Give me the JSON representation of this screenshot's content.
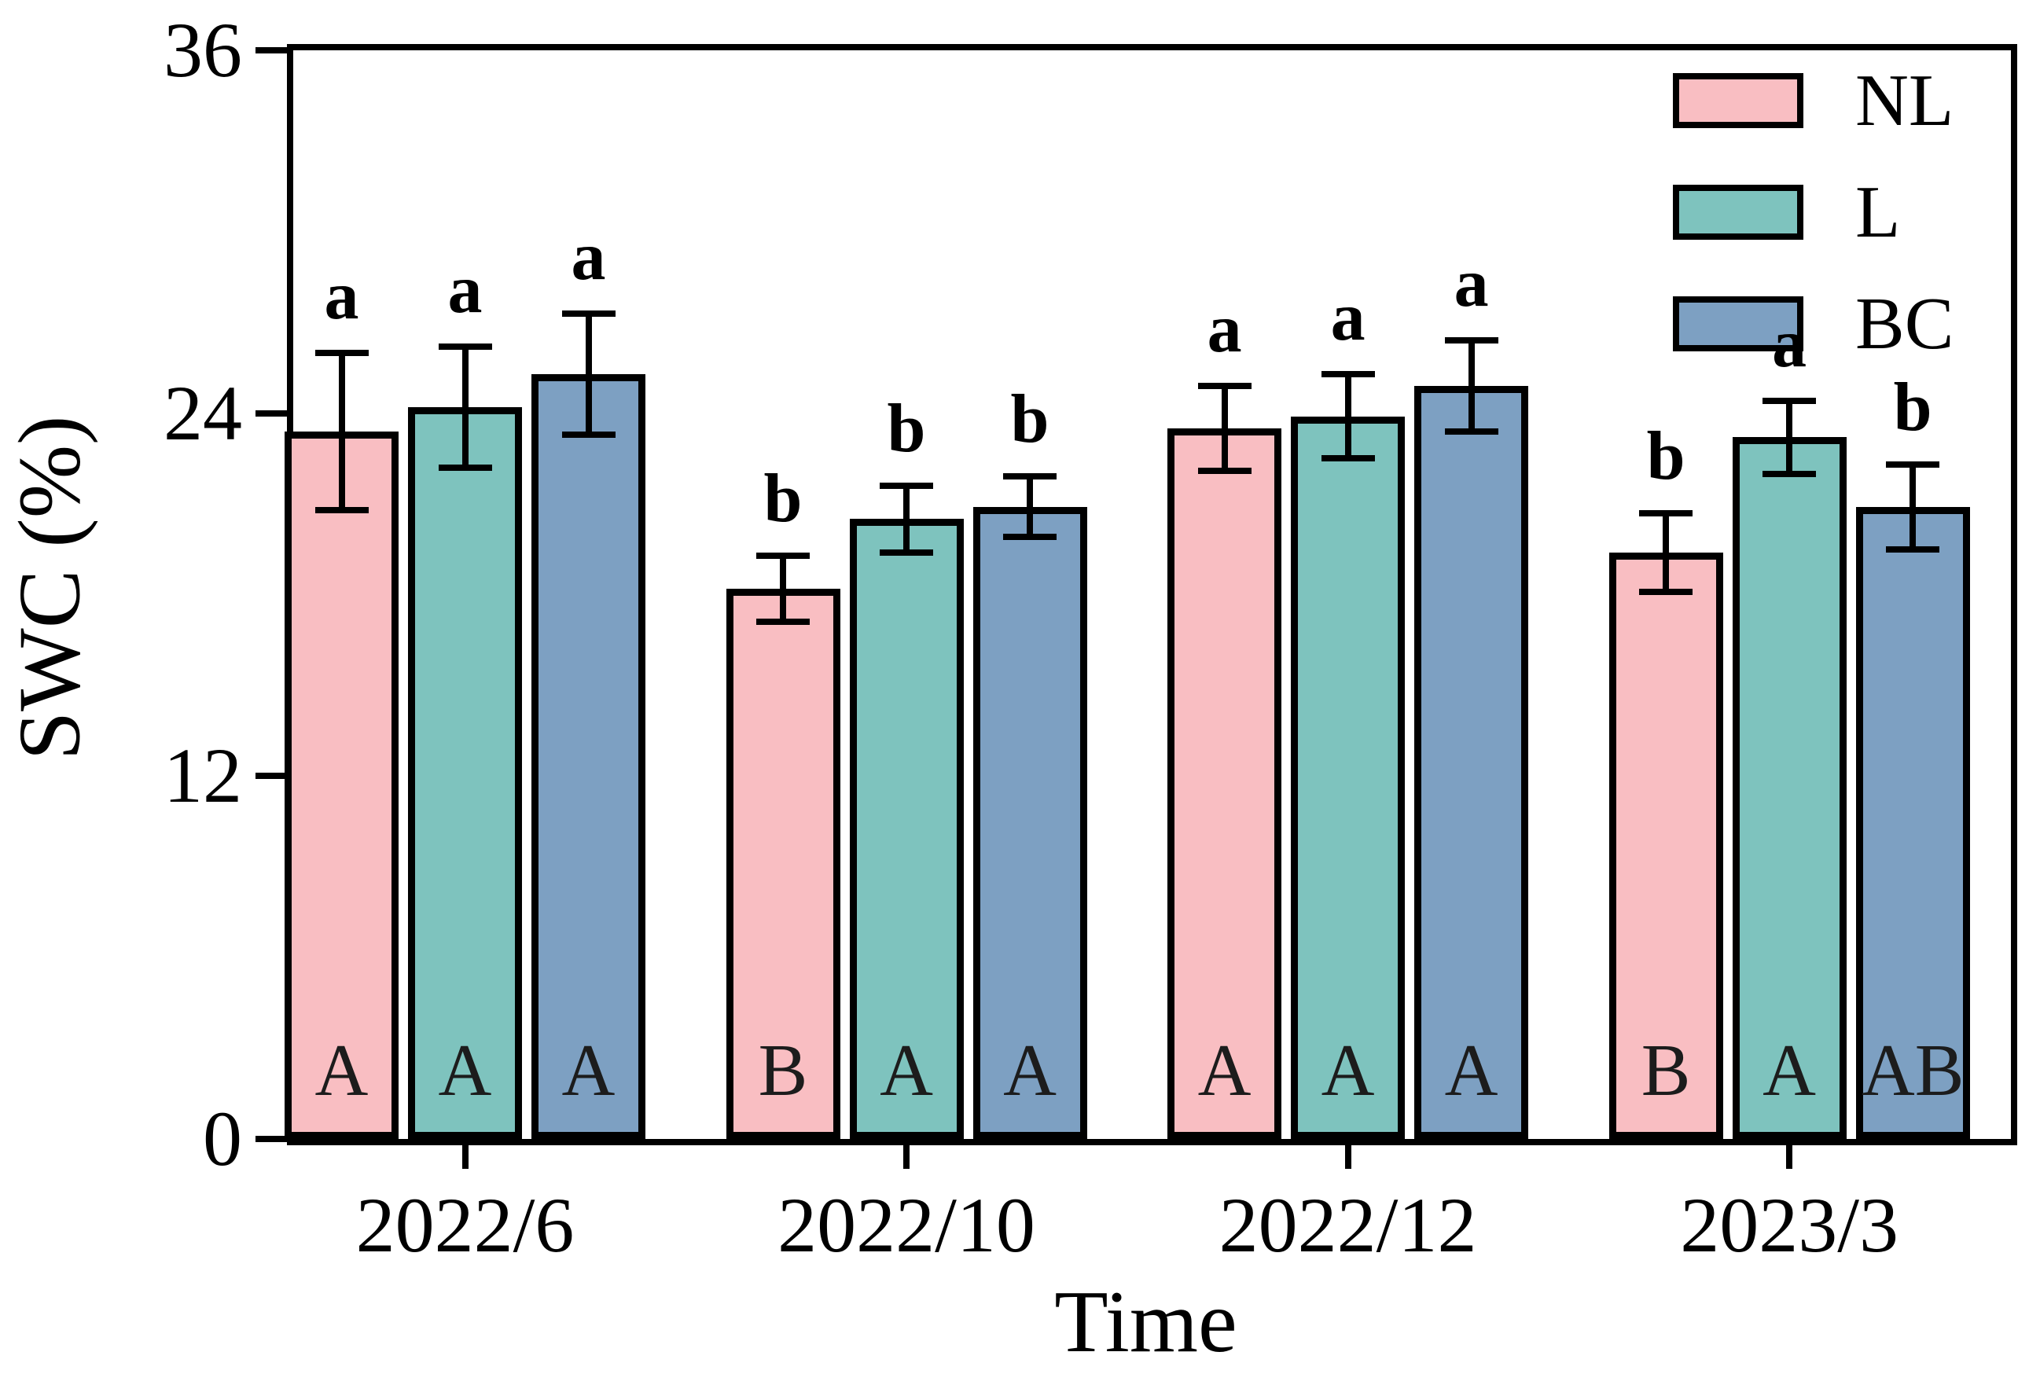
{
  "chart_data": {
    "type": "bar",
    "title": "",
    "xlabel": "Time",
    "ylabel": "SWC (%)",
    "ylim": [
      0,
      36
    ],
    "yticks": [
      0,
      12,
      24,
      36
    ],
    "grid": false,
    "legend_position": "top-right",
    "categories": [
      "2022/6",
      "2022/10",
      "2022/12",
      "2023/3"
    ],
    "series": [
      {
        "name": "NL",
        "color": "#f9bec2",
        "values": [
          23.4,
          18.2,
          23.5,
          19.4
        ],
        "errors": [
          2.6,
          1.1,
          1.4,
          1.3
        ],
        "sig_letters": [
          "a",
          "b",
          "a",
          "b"
        ],
        "base_letters": [
          "A",
          "B",
          "A",
          "B"
        ]
      },
      {
        "name": "L",
        "color": "#7ec3be",
        "values": [
          24.2,
          20.5,
          23.9,
          23.2
        ],
        "errors": [
          2.0,
          1.1,
          1.4,
          1.2
        ],
        "sig_letters": [
          "a",
          "b",
          "a",
          "a"
        ],
        "base_letters": [
          "A",
          "A",
          "A",
          "A"
        ]
      },
      {
        "name": "BC",
        "color": "#7da0c2",
        "values": [
          25.3,
          20.9,
          24.9,
          20.9
        ],
        "errors": [
          2.0,
          1.0,
          1.5,
          1.4
        ],
        "sig_letters": [
          "a",
          "b",
          "a",
          "b"
        ],
        "base_letters": [
          "A",
          "A",
          "A",
          "AB"
        ]
      }
    ]
  }
}
